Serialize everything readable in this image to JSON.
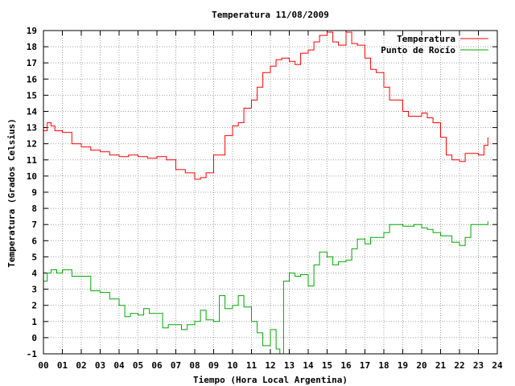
{
  "chart_data": {
    "type": "line",
    "title": "Temperatura 11/08/2009",
    "xlabel": "Tiempo (Hora Local Argentina)",
    "ylabel": "Temperatura (Grados Celsius)",
    "xlim": [
      0,
      24
    ],
    "ylim": [
      -1,
      19
    ],
    "x_ticks": [
      "00",
      "01",
      "02",
      "03",
      "04",
      "05",
      "06",
      "07",
      "08",
      "09",
      "10",
      "11",
      "12",
      "13",
      "14",
      "15",
      "16",
      "17",
      "18",
      "19",
      "20",
      "21",
      "22",
      "23",
      "24"
    ],
    "y_ticks": [
      -1,
      0,
      1,
      2,
      3,
      4,
      5,
      6,
      7,
      8,
      9,
      10,
      11,
      12,
      13,
      14,
      15,
      16,
      17,
      18,
      19
    ],
    "grid": true,
    "legend_position": "top-right",
    "series": [
      {
        "name": "Temperatura",
        "color": "#ff0000",
        "x": [
          0,
          0.2,
          0.4,
          0.6,
          1,
          1.5,
          2,
          2.5,
          3,
          3.5,
          4,
          4.5,
          5,
          5.5,
          6,
          6.5,
          7,
          7.5,
          8,
          8.3,
          8.6,
          9,
          9.3,
          9.6,
          10,
          10.3,
          10.6,
          11,
          11.3,
          11.6,
          12,
          12.3,
          12.6,
          13,
          13.3,
          13.6,
          14,
          14.3,
          14.6,
          15,
          15.3,
          15.6,
          16,
          16.3,
          16.6,
          17,
          17.3,
          17.6,
          18,
          18.3,
          18.6,
          19,
          19.3,
          19.6,
          20,
          20.3,
          20.6,
          21,
          21.3,
          21.6,
          22,
          22.3,
          22.6,
          23,
          23.3,
          23.5
        ],
        "y": [
          12.8,
          13.3,
          13.1,
          12.8,
          12.7,
          12,
          11.8,
          11.6,
          11.5,
          11.3,
          11.2,
          11.3,
          11.2,
          11.1,
          11.2,
          11,
          10.4,
          10.2,
          9.8,
          9.9,
          10.2,
          11.3,
          11.3,
          12.5,
          13.1,
          13.3,
          14.2,
          14.7,
          15.5,
          16.4,
          16.8,
          17.2,
          17.3,
          17.1,
          16.9,
          17.6,
          17.8,
          18.3,
          18.7,
          18.9,
          18.3,
          18.1,
          18.9,
          18.2,
          18.1,
          17.3,
          16.6,
          16.4,
          15.5,
          14.7,
          14.7,
          14,
          13.7,
          13.7,
          13.9,
          13.6,
          13.3,
          12.4,
          11.3,
          11,
          10.9,
          11.4,
          11.4,
          11.3,
          11.9,
          12.4
        ]
      },
      {
        "name": "Punto de Rocío",
        "color": "#00aa00",
        "x": [
          0,
          0.2,
          0.4,
          0.7,
          1,
          1.5,
          2,
          2.5,
          3,
          3.5,
          4,
          4.3,
          4.6,
          5,
          5.3,
          5.6,
          6,
          6.3,
          6.6,
          7,
          7.3,
          7.6,
          8,
          8.3,
          8.6,
          9,
          9.3,
          9.6,
          10,
          10.3,
          10.6,
          11,
          11.3,
          11.6,
          12,
          12.3,
          12.5,
          12.7,
          13,
          13.3,
          13.6,
          14,
          14.3,
          14.6,
          15,
          15.3,
          15.6,
          16,
          16.3,
          16.6,
          17,
          17.3,
          17.6,
          18,
          18.3,
          18.6,
          19,
          19.3,
          19.6,
          20,
          20.3,
          20.6,
          21,
          21.3,
          21.6,
          22,
          22.3,
          22.6,
          23,
          23.3,
          23.5
        ],
        "y": [
          3.5,
          4,
          4.2,
          4,
          4.2,
          3.8,
          3.8,
          2.9,
          2.8,
          2.4,
          2,
          1.3,
          1.5,
          1.4,
          1.8,
          1.5,
          1.5,
          0.6,
          0.8,
          0.8,
          0.5,
          0.8,
          1,
          1.7,
          1.1,
          1,
          2.6,
          1.8,
          2,
          2.6,
          1.9,
          1,
          0.3,
          -0.5,
          0.5,
          -0.7,
          -1,
          3.5,
          4,
          3.8,
          3.9,
          3.2,
          4.5,
          5.3,
          5,
          4.5,
          4.7,
          4.8,
          5.5,
          6.1,
          5.8,
          6.2,
          6.2,
          6.5,
          7,
          7,
          6.9,
          6.9,
          7,
          6.8,
          6.7,
          6.5,
          6.3,
          6.3,
          5.9,
          5.7,
          6.2,
          7,
          7,
          7,
          7.2
        ]
      }
    ]
  }
}
